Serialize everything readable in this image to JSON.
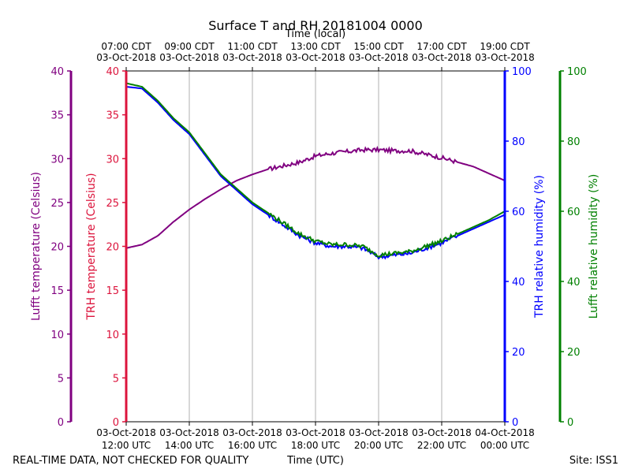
{
  "chart_data": {
    "type": "line",
    "title": "Surface T and RH 20181004 0000",
    "top_axis_label": "Time (local)",
    "bottom_axis_label": "Time (UTC)",
    "footer_left": "REAL-TIME DATA, NOT CHECKED FOR QUALITY",
    "footer_right": "Site: ISS1",
    "x_hours_utc": [
      12,
      24
    ],
    "bottom_ticks": [
      {
        "hour": 12,
        "date": "03-Oct-2018",
        "time": "12:00 UTC"
      },
      {
        "hour": 14,
        "date": "03-Oct-2018",
        "time": "14:00 UTC"
      },
      {
        "hour": 16,
        "date": "03-Oct-2018",
        "time": "16:00 UTC"
      },
      {
        "hour": 18,
        "date": "03-Oct-2018",
        "time": "18:00 UTC"
      },
      {
        "hour": 20,
        "date": "03-Oct-2018",
        "time": "20:00 UTC"
      },
      {
        "hour": 22,
        "date": "03-Oct-2018",
        "time": "22:00 UTC"
      },
      {
        "hour": 24,
        "date": "04-Oct-2018",
        "time": "00:00 UTC"
      }
    ],
    "top_ticks": [
      {
        "hour": 12,
        "time": "07:00 CDT",
        "date": "03-Oct-2018"
      },
      {
        "hour": 14,
        "time": "09:00 CDT",
        "date": "03-Oct-2018"
      },
      {
        "hour": 16,
        "time": "11:00 CDT",
        "date": "03-Oct-2018"
      },
      {
        "hour": 18,
        "time": "13:00 CDT",
        "date": "03-Oct-2018"
      },
      {
        "hour": 20,
        "time": "15:00 CDT",
        "date": "03-Oct-2018"
      },
      {
        "hour": 22,
        "time": "17:00 CDT",
        "date": "03-Oct-2018"
      },
      {
        "hour": 24,
        "time": "19:00 CDT",
        "date": "03-Oct-2018"
      }
    ],
    "axes": {
      "lufft_temp": {
        "label": "Lufft temperature (Celsius)",
        "color": "#800080",
        "ylim": [
          0,
          40
        ],
        "ticks": [
          "0",
          "5",
          "10",
          "15",
          "20",
          "25",
          "30",
          "35",
          "40"
        ]
      },
      "trh_temp": {
        "label": "TRH temperature (Celsius)",
        "color": "#dc143c",
        "ylim": [
          0,
          40
        ],
        "ticks": [
          "0",
          "5",
          "10",
          "15",
          "20",
          "25",
          "30",
          "35",
          "40"
        ]
      },
      "trh_rh": {
        "label": "TRH relative humidity (%)",
        "color": "#0000ff",
        "ylim": [
          0,
          100
        ],
        "ticks": [
          "0",
          "20",
          "40",
          "60",
          "80",
          "100"
        ]
      },
      "lufft_rh": {
        "label": "Lufft relative humidity (%)",
        "color": "#008000",
        "ylim": [
          0,
          100
        ],
        "ticks": [
          "0",
          "20",
          "40",
          "60",
          "80",
          "100"
        ]
      }
    },
    "series": [
      {
        "name": "Lufft temperature",
        "axis": "lufft_temp",
        "color": "#800080",
        "x": [
          12.0,
          12.5,
          13.0,
          13.5,
          14.0,
          14.5,
          15.0,
          15.5,
          16.0,
          16.5,
          17.0,
          17.5,
          18.0,
          18.5,
          19.0,
          19.5,
          20.0,
          20.5,
          21.0,
          21.5,
          22.0,
          22.5,
          23.0,
          23.5,
          24.0
        ],
        "y": [
          19.8,
          20.2,
          21.2,
          22.8,
          24.2,
          25.4,
          26.5,
          27.5,
          28.2,
          28.8,
          29.2,
          29.6,
          30.3,
          30.6,
          30.8,
          31.0,
          31.0,
          30.9,
          30.9,
          30.5,
          30.1,
          29.6,
          29.1,
          28.3,
          27.5
        ]
      },
      {
        "name": "TRH relative humidity",
        "axis": "trh_rh",
        "color": "#0000ff",
        "x": [
          12.0,
          12.5,
          13.0,
          13.5,
          14.0,
          14.5,
          15.0,
          15.5,
          16.0,
          16.5,
          17.0,
          17.5,
          18.0,
          18.5,
          19.0,
          19.5,
          20.0,
          20.5,
          21.0,
          21.5,
          22.0,
          22.5,
          23.0,
          23.5,
          24.0
        ],
        "y": [
          95.5,
          95.0,
          91.0,
          86.0,
          82.0,
          76.0,
          70.0,
          66.0,
          62.0,
          59.0,
          56.0,
          53.0,
          51.0,
          50.0,
          50.0,
          49.5,
          47.0,
          47.5,
          48.0,
          49.5,
          51.0,
          53.0,
          55.0,
          57.0,
          59.0
        ]
      },
      {
        "name": "Lufft relative humidity",
        "axis": "lufft_rh",
        "color": "#008000",
        "x": [
          12.0,
          12.5,
          13.0,
          13.5,
          14.0,
          14.5,
          15.0,
          15.5,
          16.0,
          16.5,
          17.0,
          17.5,
          18.0,
          18.5,
          19.0,
          19.5,
          20.0,
          20.5,
          21.0,
          21.5,
          22.0,
          22.5,
          23.0,
          23.5,
          24.0
        ],
        "y": [
          96.5,
          95.5,
          91.5,
          86.5,
          82.5,
          76.5,
          70.5,
          66.5,
          62.5,
          59.5,
          56.5,
          53.5,
          51.5,
          50.5,
          50.5,
          50.0,
          47.5,
          48.0,
          48.5,
          50.0,
          51.5,
          53.5,
          55.5,
          57.5,
          60.0
        ]
      }
    ]
  }
}
